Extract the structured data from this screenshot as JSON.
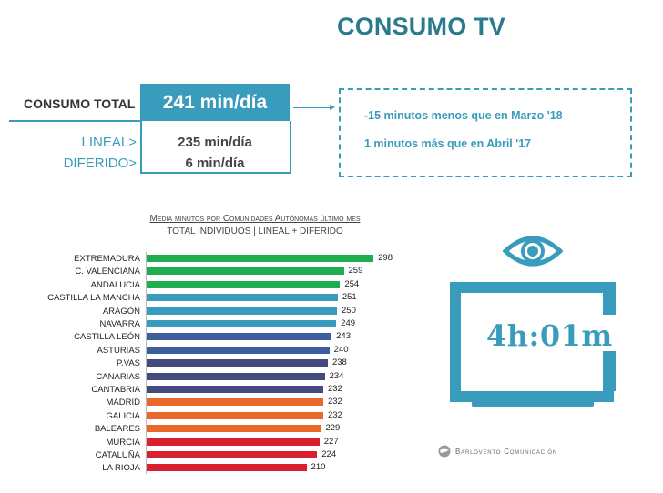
{
  "header": {
    "title": "CONSUMO TV"
  },
  "consumo": {
    "total_label": "CONSUMO TOTAL",
    "total_value": "241 min/día",
    "lineal_label": "LINEAL>",
    "lineal_value": "235 min/día",
    "diferido_label": "DIFERIDO>",
    "diferido_value": "6 min/día"
  },
  "notes": [
    "-15 minutos menos que en Marzo '18",
    "1 minutos más que en Abril '17"
  ],
  "tv": {
    "time": "4h:01m",
    "color": "#3a9cbd"
  },
  "footer": {
    "brand": "Barlovento Comunicación"
  },
  "chart_data": {
    "type": "bar",
    "orientation": "horizontal",
    "title": "Media minutos por Comunidades Autónomas último mes",
    "subtitle": "TOTAL INDIVIDUOS | LINEAL + DIFERIDO",
    "xlabel": "",
    "ylabel": "",
    "grid": false,
    "legend": null,
    "categories": [
      "EXTREMADURA",
      "C. VALENCIANA",
      "ANDALUCIA",
      "CASTILLA LA MANCHA",
      "ARAGÓN",
      "NAVARRA",
      "CASTILLA LEÓN",
      "ASTURIAS",
      "P.VAS",
      "CANARIAS",
      "CANTABRIA",
      "MADRID",
      "GALICIA",
      "BALEARES",
      "MURCIA",
      "CATALUÑA",
      "LA RIOJA"
    ],
    "values": [
      298,
      259,
      254,
      251,
      250,
      249,
      243,
      240,
      238,
      234,
      232,
      232,
      232,
      229,
      227,
      224,
      210
    ],
    "colors": [
      "#1fad4f",
      "#1fad4f",
      "#1fad4f",
      "#3a9cbd",
      "#3a9cbd",
      "#3a9cbd",
      "#3d5f9e",
      "#3d5f9e",
      "#444a7e",
      "#444a7e",
      "#444a7e",
      "#e8692a",
      "#e8692a",
      "#e8692a",
      "#d9202f",
      "#d9202f",
      "#d9202f"
    ],
    "xlim": [
      0,
      300
    ]
  }
}
